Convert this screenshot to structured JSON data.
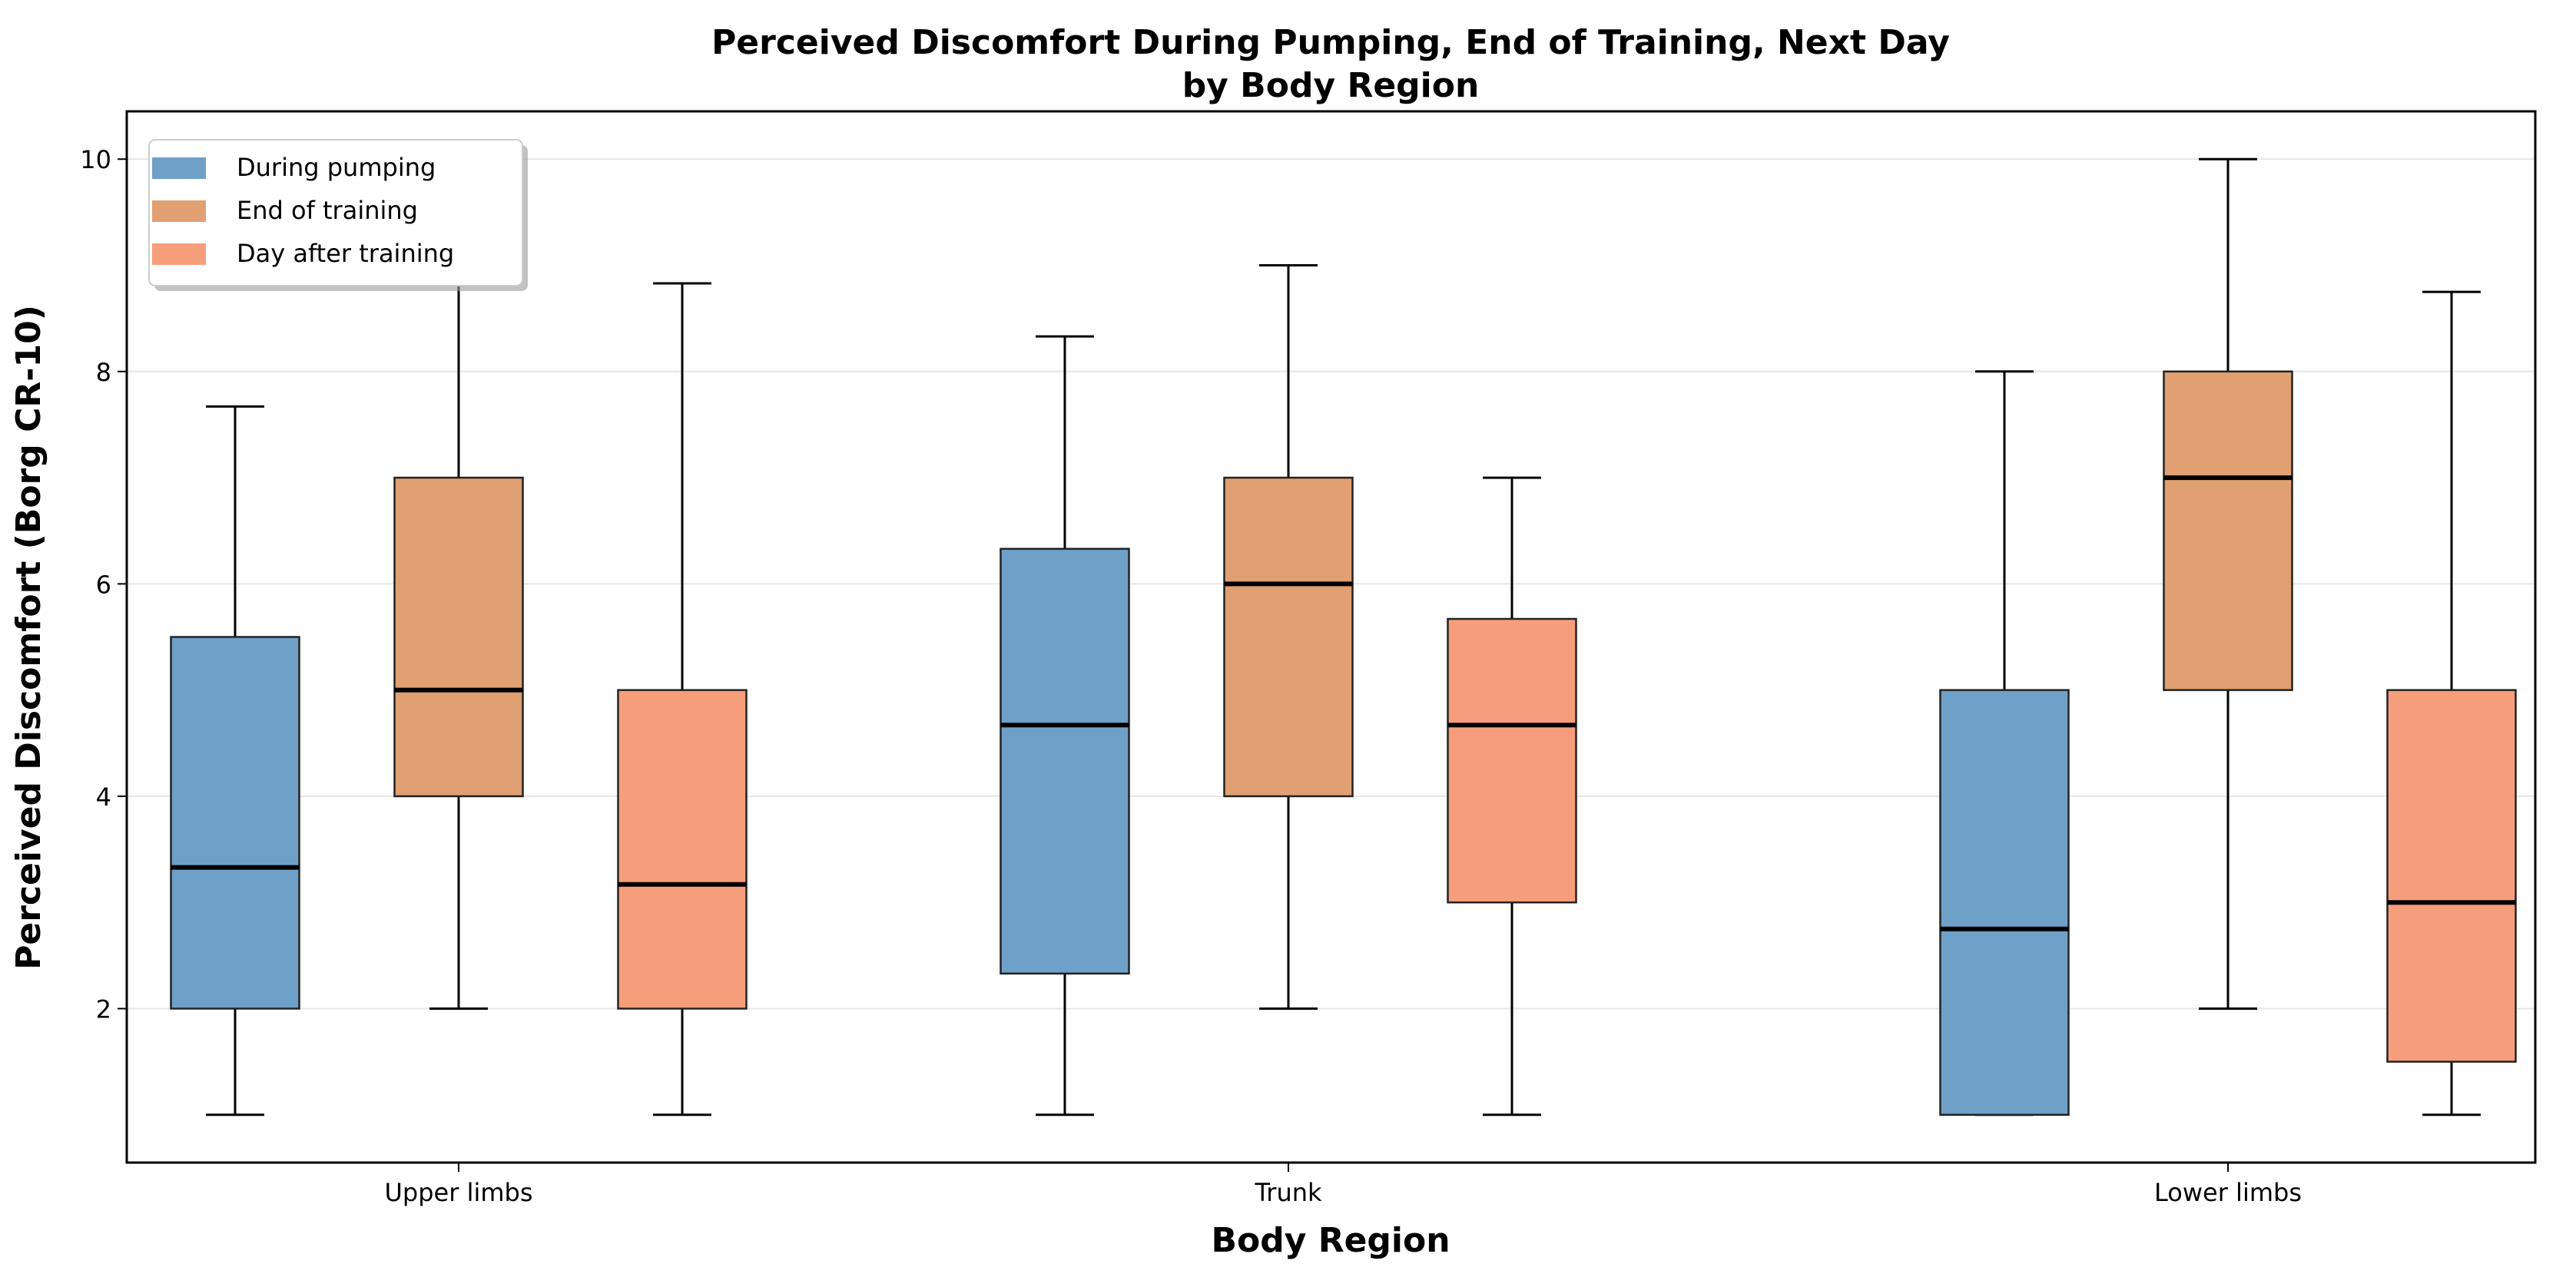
{
  "chart_data": {
    "type": "box",
    "title": "Perceived Discomfort During Pumping, End of Training, Next Day",
    "subtitle": "by Body Region",
    "xlabel": "Body Region",
    "ylabel": "Perceived Discomfort (Borg CR-10)",
    "ylim": [
      0.55,
      10.45
    ],
    "yticks": [
      2,
      4,
      6,
      8,
      10
    ],
    "grid": "y",
    "legend_position": "top-left",
    "categories": [
      "Upper limbs",
      "Trunk",
      "Lower limbs"
    ],
    "series": [
      {
        "name": "During pumping",
        "color": "#6fa0c8",
        "boxes": [
          {
            "whislo": 1,
            "q1": 2,
            "med": 3.33,
            "q3": 5.5,
            "whishi": 7.67
          },
          {
            "whislo": 1,
            "q1": 2.33,
            "med": 4.67,
            "q3": 6.33,
            "whishi": 8.33
          },
          {
            "whislo": 1,
            "q1": 1,
            "med": 2.75,
            "q3": 5,
            "whishi": 8
          }
        ]
      },
      {
        "name": "End of training",
        "color": "#e0a072",
        "boxes": [
          {
            "whislo": 2,
            "q1": 4,
            "med": 5,
            "q3": 7,
            "whishi": 10
          },
          {
            "whislo": 2,
            "q1": 4,
            "med": 6,
            "q3": 7,
            "whishi": 9
          },
          {
            "whislo": 2,
            "q1": 5,
            "med": 7,
            "q3": 8,
            "whishi": 10
          }
        ]
      },
      {
        "name": "Day after training",
        "color": "#f69e7b",
        "boxes": [
          {
            "whislo": 1,
            "q1": 2,
            "med": 3.17,
            "q3": 5,
            "whishi": 8.83
          },
          {
            "whislo": 1,
            "q1": 3,
            "med": 4.67,
            "q3": 5.67,
            "whishi": 7
          },
          {
            "whislo": 1,
            "q1": 1.5,
            "med": 3,
            "q3": 5,
            "whishi": 8.75
          }
        ]
      }
    ]
  }
}
